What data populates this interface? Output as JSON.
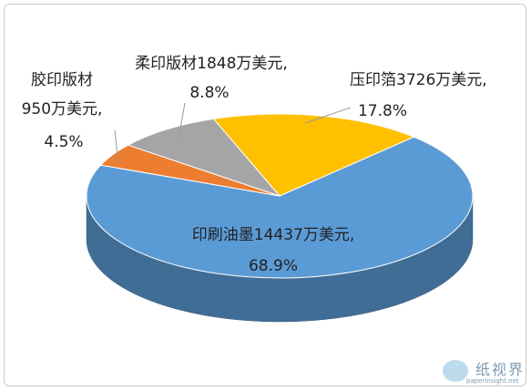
{
  "chart_data": {
    "type": "pie3d",
    "categories": [
      "压印箔3726万美元,",
      "印刷油墨14437万美元,",
      "胶印版材\n950万美元,",
      "柔印版材1848万美元,"
    ],
    "values": [
      17.8,
      68.9,
      4.5,
      8.8
    ],
    "value_labels": [
      "17.8%",
      "68.9%",
      "4.5%",
      "8.8%"
    ],
    "colors": [
      "#ffc000",
      "#5b9bd5",
      "#ed7d31",
      "#a5a5a5"
    ]
  },
  "watermark": {
    "text": "纸视界",
    "url": "paperinsight.net"
  }
}
